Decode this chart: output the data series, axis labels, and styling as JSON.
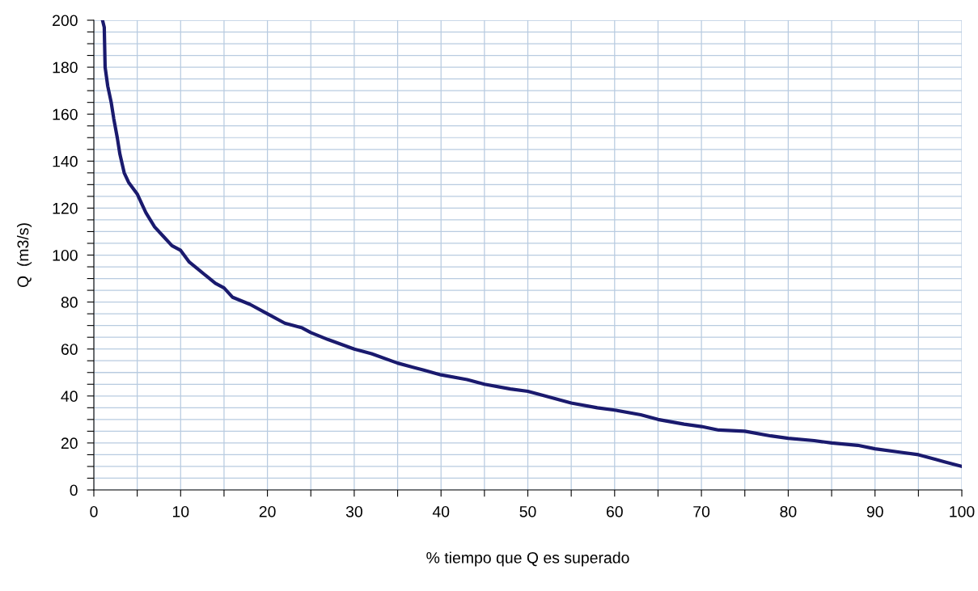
{
  "chart_data": {
    "type": "line",
    "xlabel": "% tiempo que Q es superado",
    "ylabel": "Q  (m3/s)",
    "x": [
      1.0,
      1.2,
      1.3,
      1.6,
      2.0,
      2.3,
      2.7,
      3.0,
      3.5,
      4.0,
      5,
      6,
      7,
      8,
      9,
      10,
      11,
      12,
      13,
      14,
      15,
      16,
      18,
      20,
      22,
      24,
      25,
      27,
      30,
      32,
      35,
      38,
      40,
      43,
      45,
      48,
      50,
      52,
      55,
      58,
      60,
      63,
      65,
      68,
      70,
      72,
      75,
      78,
      80,
      83,
      85,
      88,
      90,
      93,
      95,
      97,
      98,
      100
    ],
    "series": [
      {
        "color": "#1a1a6e",
        "values": [
          200,
          197,
          180,
          172,
          165,
          158,
          150,
          143,
          135,
          131,
          126,
          118,
          112,
          108,
          104,
          102,
          97,
          94,
          91,
          88,
          86,
          82,
          79,
          75,
          71,
          69,
          67,
          64,
          60,
          58,
          54,
          51,
          49,
          47,
          45,
          43,
          42,
          40,
          37,
          35,
          34,
          32,
          30,
          28,
          27,
          25.5,
          25,
          23,
          22,
          21,
          20,
          19,
          17.5,
          16,
          15,
          13,
          12,
          10
        ]
      }
    ],
    "xlim": [
      0,
      100
    ],
    "ylim": [
      0,
      200
    ],
    "xticks": [
      0,
      {
        "value": 5,
        "label": null
      },
      10,
      {
        "value": 15,
        "label": null
      },
      20,
      {
        "value": 25,
        "label": null
      },
      30,
      {
        "value": 35,
        "label": null
      },
      40,
      {
        "value": 45,
        "label": null
      },
      50,
      {
        "value": 55,
        "label": null
      },
      60,
      {
        "value": 65,
        "label": null
      },
      70,
      {
        "value": 75,
        "label": null
      },
      80,
      {
        "value": 85,
        "label": null
      },
      90,
      {
        "value": 95,
        "label": null
      },
      100
    ],
    "yticks": [
      0,
      {
        "value": 5,
        "label": null
      },
      {
        "value": 10,
        "label": null
      },
      {
        "value": 15,
        "label": null
      },
      20,
      {
        "value": 25,
        "label": null
      },
      {
        "value": 30,
        "label": null
      },
      {
        "value": 35,
        "label": null
      },
      40,
      {
        "value": 45,
        "label": null
      },
      {
        "value": 50,
        "label": null
      },
      {
        "value": 55,
        "label": null
      },
      60,
      {
        "value": 65,
        "label": null
      },
      {
        "value": 70,
        "label": null
      },
      {
        "value": 75,
        "label": null
      },
      80,
      {
        "value": 85,
        "label": null
      },
      {
        "value": 90,
        "label": null
      },
      {
        "value": 95,
        "label": null
      },
      100,
      {
        "value": 105,
        "label": null
      },
      {
        "value": 110,
        "label": null
      },
      {
        "value": 115,
        "label": null
      },
      120,
      {
        "value": 125,
        "label": null
      },
      {
        "value": 130,
        "label": null
      },
      {
        "value": 135,
        "label": null
      },
      140,
      {
        "value": 145,
        "label": null
      },
      {
        "value": 150,
        "label": null
      },
      {
        "value": 155,
        "label": null
      },
      160,
      {
        "value": 165,
        "label": null
      },
      {
        "value": 170,
        "label": null
      },
      {
        "value": 175,
        "label": null
      },
      180,
      {
        "value": 185,
        "label": null
      },
      {
        "value": 190,
        "label": null
      },
      {
        "value": 195,
        "label": null
      },
      200
    ],
    "grid": true,
    "marker": "none",
    "line_style": "solid"
  }
}
